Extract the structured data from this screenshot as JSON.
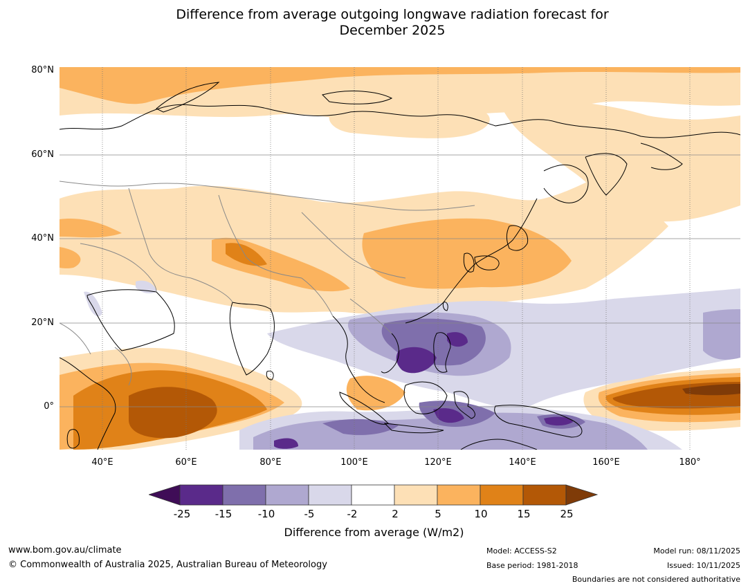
{
  "title_line1": "Difference from average outgoing longwave radiation forecast for",
  "title_line2": "December 2025",
  "lat_labels": [
    "80°N",
    "60°N",
    "40°N",
    "20°N",
    "0°"
  ],
  "lon_labels": [
    "40°E",
    "60°E",
    "80°E",
    "100°E",
    "120°E",
    "140°E",
    "160°E",
    "180°"
  ],
  "legend": {
    "ticks": [
      "-25",
      "-15",
      "-10",
      "-5",
      "-2",
      "2",
      "5",
      "10",
      "15",
      "25"
    ],
    "colors": [
      "#3f0d57",
      "#5a2a8a",
      "#7f6fac",
      "#afa8d0",
      "#d9d8ea",
      "#ffffff",
      "#fde0b6",
      "#fbb35e",
      "#e08218",
      "#b35806",
      "#7f3b08"
    ],
    "title": "Difference from average (W/m2)"
  },
  "footer": {
    "url": "www.bom.gov.au/climate",
    "copyright": "© Commonwealth of Australia 2025, Australian Bureau of Meteorology",
    "model": "Model: ACCESS-S2",
    "base_period": "Base period: 1981-2018",
    "model_run": "Model run: 08/11/2025",
    "issued": "Issued: 10/11/2025",
    "disclaimer": "Boundaries are not considered authoritative"
  }
}
